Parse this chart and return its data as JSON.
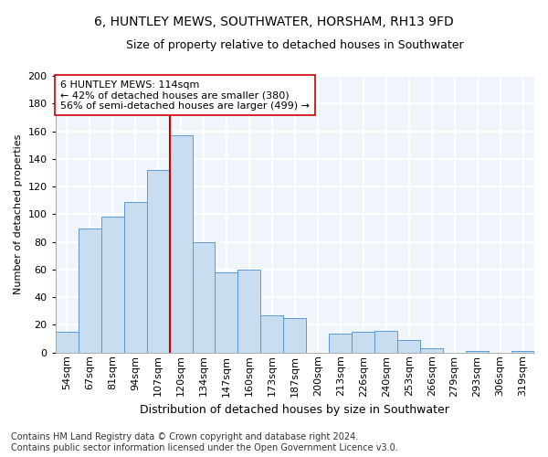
{
  "title": "6, HUNTLEY MEWS, SOUTHWATER, HORSHAM, RH13 9FD",
  "subtitle": "Size of property relative to detached houses in Southwater",
  "xlabel": "Distribution of detached houses by size in Southwater",
  "ylabel": "Number of detached properties",
  "categories": [
    "54sqm",
    "67sqm",
    "81sqm",
    "94sqm",
    "107sqm",
    "120sqm",
    "134sqm",
    "147sqm",
    "160sqm",
    "173sqm",
    "187sqm",
    "200sqm",
    "213sqm",
    "226sqm",
    "240sqm",
    "253sqm",
    "266sqm",
    "279sqm",
    "293sqm",
    "306sqm",
    "319sqm"
  ],
  "values": [
    15,
    90,
    98,
    109,
    132,
    157,
    80,
    58,
    60,
    27,
    25,
    0,
    14,
    15,
    16,
    9,
    3,
    0,
    1,
    0,
    1
  ],
  "bar_color": "#c8ddf0",
  "bar_edge_color": "#5b9bd5",
  "vline_color": "#cc0000",
  "vline_xindex": 5,
  "annotation_text": "6 HUNTLEY MEWS: 114sqm\n← 42% of detached houses are smaller (380)\n56% of semi-detached houses are larger (499) →",
  "annotation_box_facecolor": "#ffffff",
  "annotation_box_edgecolor": "#cc0000",
  "ylim": [
    0,
    200
  ],
  "yticks": [
    0,
    20,
    40,
    60,
    80,
    100,
    120,
    140,
    160,
    180,
    200
  ],
  "footnote": "Contains HM Land Registry data © Crown copyright and database right 2024.\nContains public sector information licensed under the Open Government Licence v3.0.",
  "background_color": "#ffffff",
  "plot_background_color": "#f0f4fb",
  "grid_color": "#ffffff",
  "title_fontsize": 10,
  "subtitle_fontsize": 9,
  "xlabel_fontsize": 9,
  "ylabel_fontsize": 8,
  "tick_fontsize": 8,
  "annotation_fontsize": 8,
  "footnote_fontsize": 7
}
